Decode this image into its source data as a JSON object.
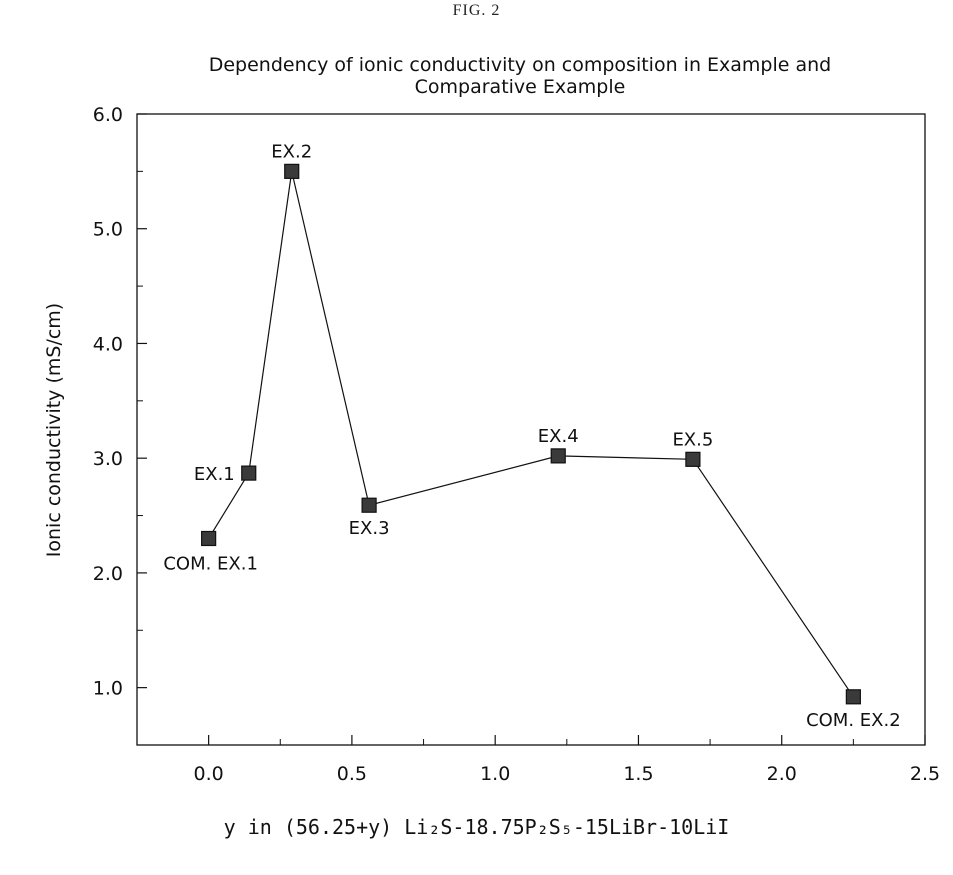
{
  "figure_label": "FIG. 2",
  "chart_data": {
    "type": "line",
    "title_lines": [
      "Dependency of ionic conductivity on composition in Example and",
      "Comparative Example"
    ],
    "xlabel": "y in (56.25+y) Li₂S-18.75P₂S₅-15LiBr-10LiI",
    "ylabel": "Ionic conductivity (mS/cm)",
    "xlim": [
      -0.25,
      2.5
    ],
    "ylim": [
      0.5,
      6.0
    ],
    "xticks": [
      0.0,
      0.5,
      1.0,
      1.5,
      2.0,
      2.5
    ],
    "xtick_labels": [
      "0.0",
      "0.5",
      "1.0",
      "1.5",
      "2.0",
      "2.5"
    ],
    "yticks": [
      1.0,
      2.0,
      3.0,
      4.0,
      5.0,
      6.0
    ],
    "ytick_labels": [
      "1.0",
      "2.0",
      "3.0",
      "4.0",
      "5.0",
      "6.0"
    ],
    "grid": false,
    "marker": "square",
    "series_color": "#111111",
    "points": [
      {
        "label": "COM. EX.1",
        "x": 0.0,
        "y": 2.3,
        "label_pos": "below-left"
      },
      {
        "label": "EX.1",
        "x": 0.14,
        "y": 2.87,
        "label_pos": "left"
      },
      {
        "label": "EX.2",
        "x": 0.29,
        "y": 5.5,
        "label_pos": "above"
      },
      {
        "label": "EX.3",
        "x": 0.56,
        "y": 2.59,
        "label_pos": "below"
      },
      {
        "label": "EX.4",
        "x": 1.22,
        "y": 3.02,
        "label_pos": "above"
      },
      {
        "label": "EX.5",
        "x": 1.69,
        "y": 2.99,
        "label_pos": "above"
      },
      {
        "label": "COM. EX.2",
        "x": 2.25,
        "y": 0.92,
        "label_pos": "below"
      }
    ]
  }
}
